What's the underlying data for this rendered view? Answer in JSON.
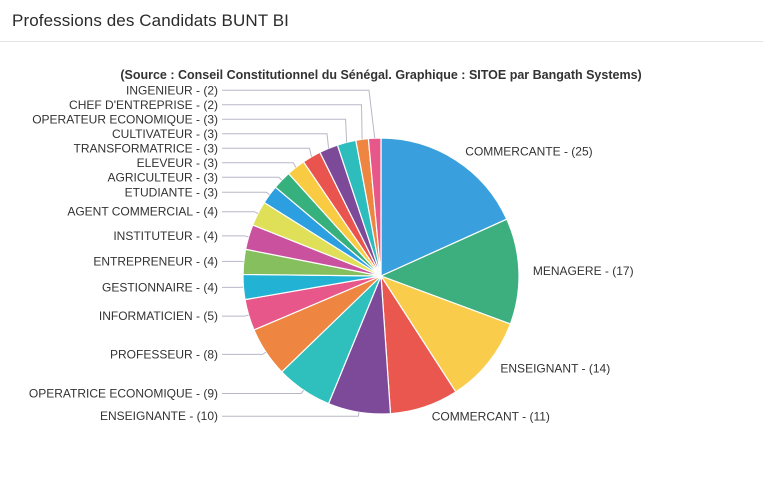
{
  "header": {
    "title": "Professions des Candidats BUNT BI"
  },
  "chart_data": {
    "type": "pie",
    "title": "",
    "subtitle": "(Source : Conseil Constitutionnel du Sénégal. Graphique : SITOE par Bangath Systems)",
    "slices": [
      {
        "label": "COMMERCANTE - (25)",
        "name": "COMMERCANTE",
        "value": 25,
        "color": "#3a9fdd"
      },
      {
        "label": "MENAGERE - (17)",
        "name": "MENAGERE",
        "value": 17,
        "color": "#3daf7f"
      },
      {
        "label": "ENSEIGNANT - (14)",
        "name": "ENSEIGNANT",
        "value": 14,
        "color": "#f9cd4b"
      },
      {
        "label": "COMMERCANT - (11)",
        "name": "COMMERCANT",
        "value": 11,
        "color": "#e9574f"
      },
      {
        "label": "ENSEIGNANTE - (10)",
        "name": "ENSEIGNANTE",
        "value": 10,
        "color": "#7d4a9a"
      },
      {
        "label": "OPERATRICE ECONOMIQUE - (9)",
        "name": "OPERATRICE ECONOMIQUE",
        "value": 9,
        "color": "#2fbfbd"
      },
      {
        "label": "PROFESSEUR - (8)",
        "name": "PROFESSEUR",
        "value": 8,
        "color": "#ee8540"
      },
      {
        "label": "INFORMATICIEN - (5)",
        "name": "INFORMATICIEN",
        "value": 5,
        "color": "#e8578a"
      },
      {
        "label": "GESTIONNAIRE - (4)",
        "name": "GESTIONNAIRE",
        "value": 4,
        "color": "#22b2d4"
      },
      {
        "label": "ENTREPRENEUR - (4)",
        "name": "ENTREPRENEUR",
        "value": 4,
        "color": "#86bf5e"
      },
      {
        "label": "INSTITUTEUR - (4)",
        "name": "INSTITUTEUR",
        "value": 4,
        "color": "#c9519e"
      },
      {
        "label": "AGENT COMMERCIAL - (4)",
        "name": "AGENT COMMERCIAL",
        "value": 4,
        "color": "#dfe057"
      },
      {
        "label": "ETUDIANTE - (3)",
        "name": "ETUDIANTE",
        "value": 3,
        "color": "#2c9fe0"
      },
      {
        "label": "AGRICULTEUR - (3)",
        "name": "AGRICULTEUR",
        "value": 3,
        "color": "#36b07c"
      },
      {
        "label": "ELEVEUR - (3)",
        "name": "ELEVEUR",
        "value": 3,
        "color": "#f8cb43"
      },
      {
        "label": "TRANSFORMATRICE - (3)",
        "name": "TRANSFORMATRICE",
        "value": 3,
        "color": "#e9554e"
      },
      {
        "label": "CULTIVATEUR - (3)",
        "name": "CULTIVATEUR",
        "value": 3,
        "color": "#7d4a9a"
      },
      {
        "label": "OPERATEUR ECONOMIQUE - (3)",
        "name": "OPERATEUR ECONOMIQUE",
        "value": 3,
        "color": "#2cbdbc"
      },
      {
        "label": "CHEF D'ENTREPRISE - (2)",
        "name": "CHEF D'ENTREPRISE",
        "value": 2,
        "color": "#ee8540"
      },
      {
        "label": "INGENIEUR - (2)",
        "name": "INGENIEUR",
        "value": 2,
        "color": "#e8578a"
      }
    ]
  }
}
